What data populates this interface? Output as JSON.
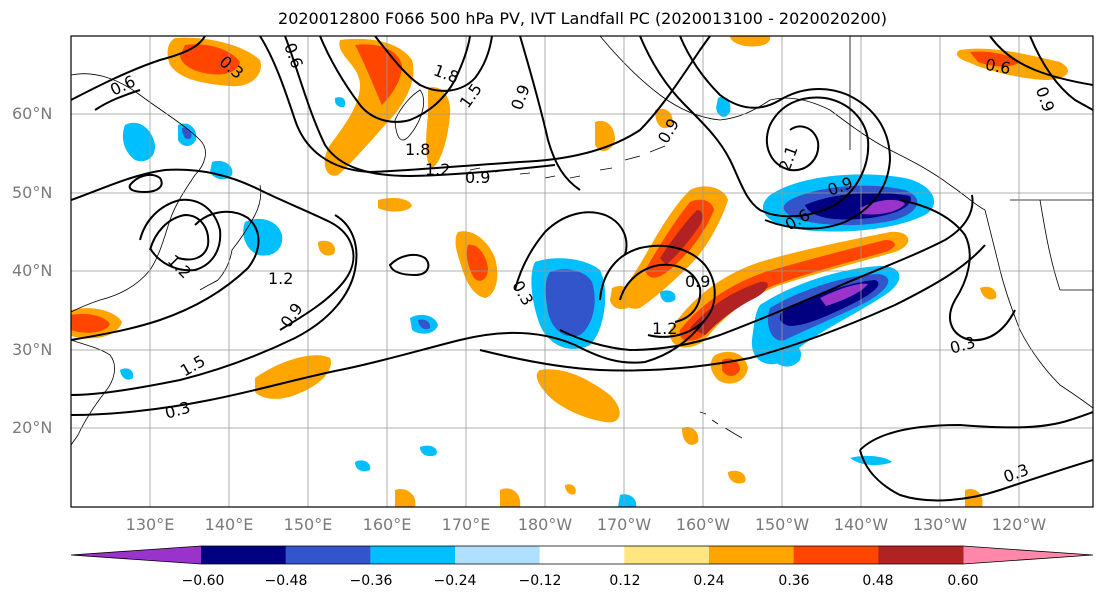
{
  "title": "2020012800 F066 500 hPa PV, IVT Landfall PC (2020013100 - 2020020200)",
  "map": {
    "lat_labels": [
      "60°N",
      "50°N",
      "40°N",
      "30°N",
      "20°N"
    ],
    "lon_labels": [
      "130°E",
      "140°E",
      "150°E",
      "160°E",
      "170°E",
      "180°W",
      "170°W",
      "160°W",
      "150°W",
      "140°W",
      "130°W",
      "120°W"
    ],
    "contour_labels": [
      "0.6",
      "0.3",
      "0.6",
      "1.8",
      "1.5",
      "0.9",
      "1.8",
      "1.2",
      "0.9",
      "0.9",
      "0.3",
      "1.2",
      "1.2",
      "0.9",
      "1.5",
      "0.3",
      "0.9",
      "1.2",
      "2.1",
      "0.9",
      "0.6",
      "0.3",
      "0.3",
      "0.6",
      "0.9"
    ]
  },
  "colorbar": {
    "ticks": [
      "−0.60",
      "−0.48",
      "−0.36",
      "−0.24",
      "−0.12",
      "0.12",
      "0.24",
      "0.36",
      "0.48",
      "0.60"
    ],
    "colors": [
      "#9933cc",
      "#000080",
      "#3355cc",
      "#00bfff",
      "#b0e0ff",
      "#ffffff",
      "#ffe680",
      "#ffa500",
      "#ff4500",
      "#b22222",
      "#ff88aa"
    ]
  }
}
